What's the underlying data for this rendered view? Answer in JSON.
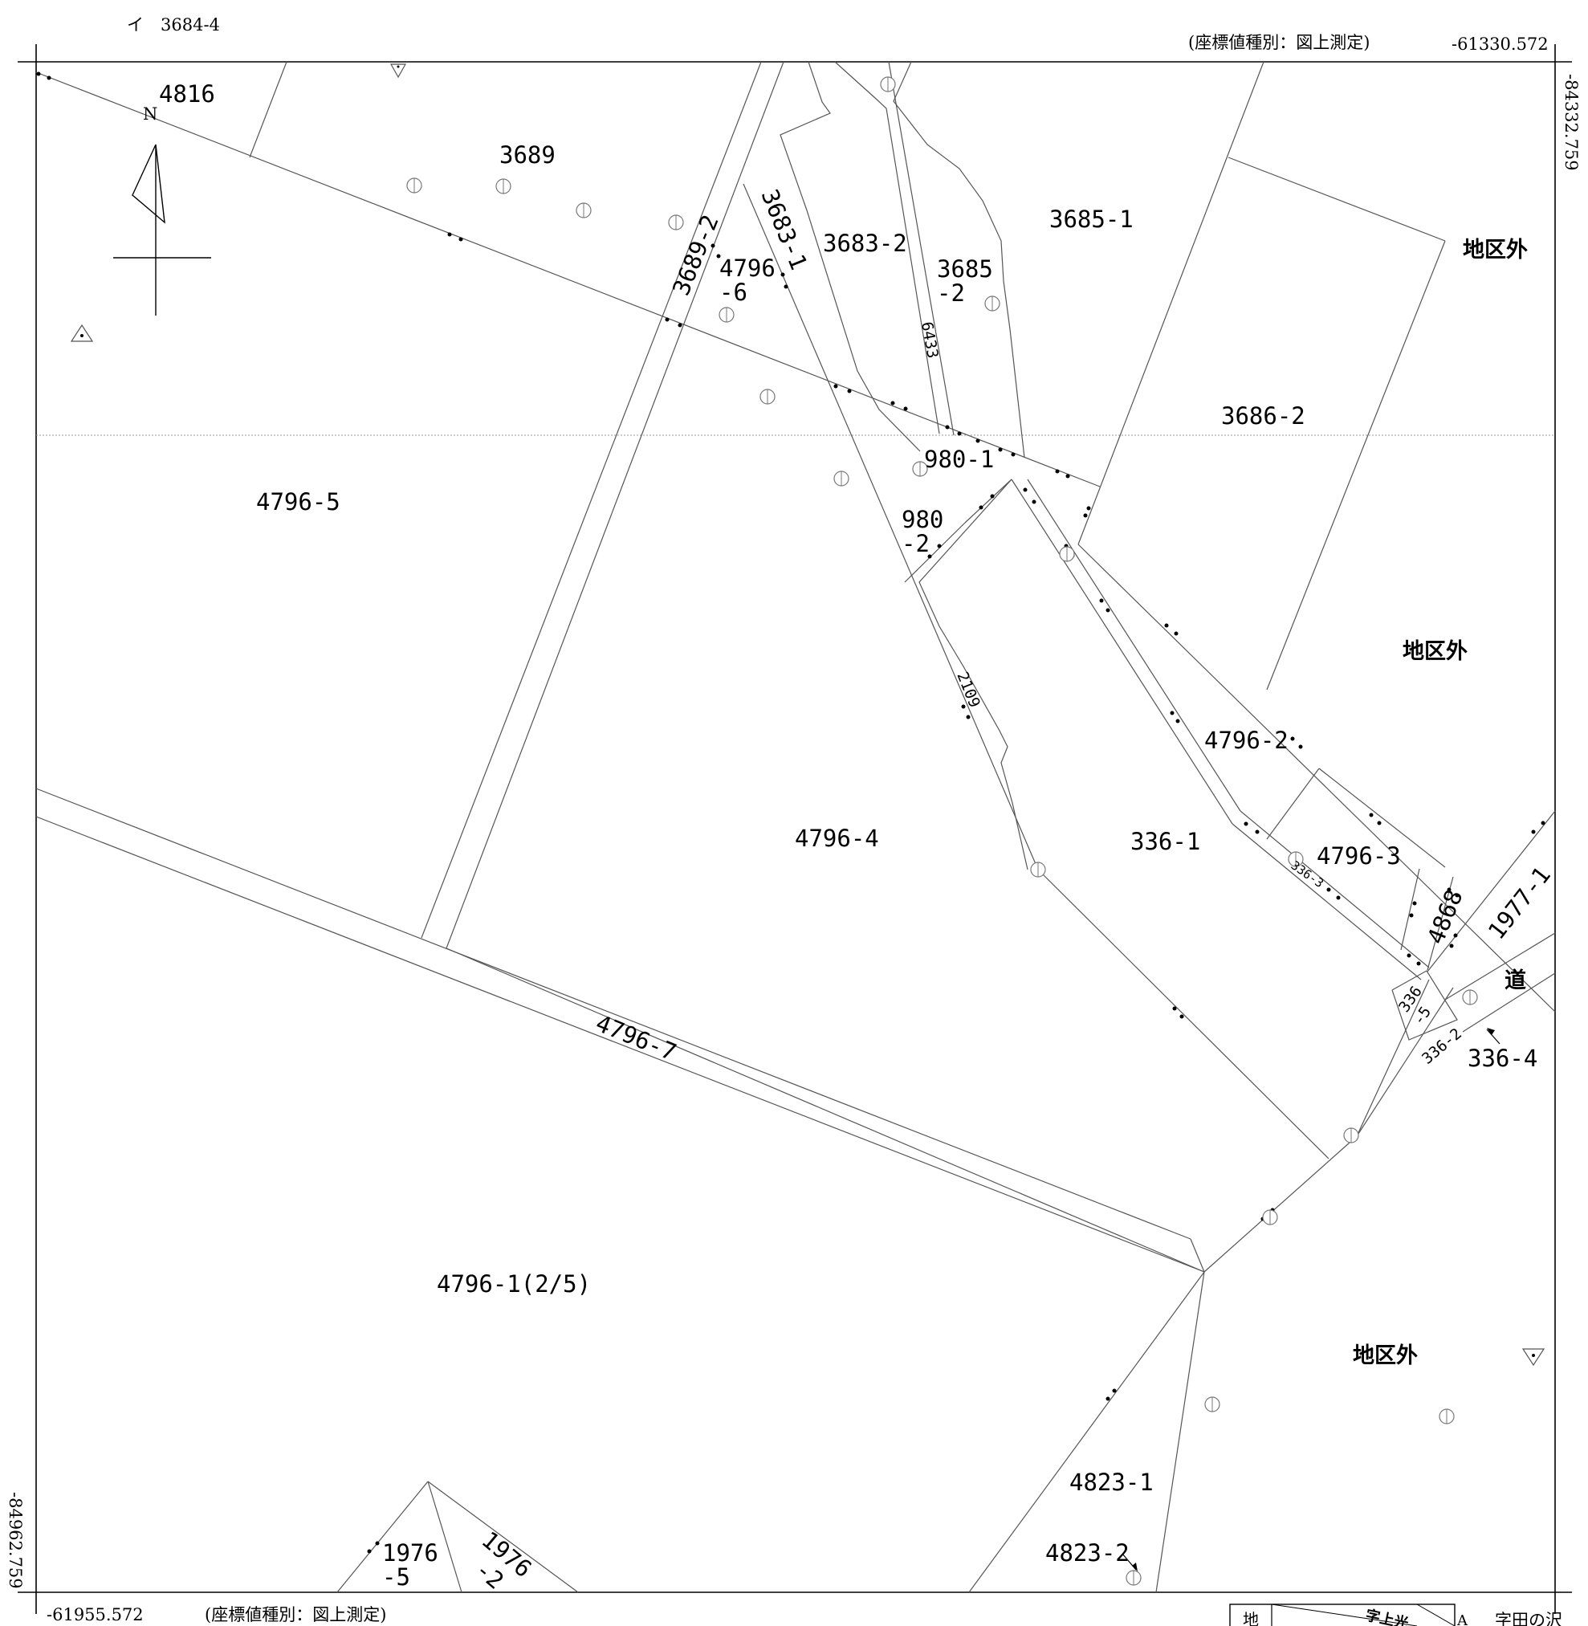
{
  "top_left_note": "イ　3684-4",
  "coord_type_top": "(座標値種別：図上測定)",
  "coord_x_top": "-61330.572",
  "coord_y_right": "-84332.759",
  "coord_y_left": "-84962.759",
  "coord_x_bottom": "-61955.572",
  "coord_type_bottom": "(座標値種別：図上測定)",
  "north": "N",
  "parcels": {
    "p4816": "4816",
    "p3689": "3689",
    "p3689_2": "3689-2",
    "p4796_6a": "4796",
    "p4796_6b": "-6",
    "p3683_1": "3683-1",
    "p3683_2": "3683-2",
    "p3685_2a": "3685",
    "p3685_2b": "-2",
    "p3685_1": "3685-1",
    "p6433": "6433",
    "p3686_2": "3686-2",
    "p980_1": "980-1",
    "p980_2a": "980",
    "p980_2b": "-2",
    "p4796_5": "4796-5",
    "p2109": "2109",
    "p4796_2": "4796-2",
    "p4796_4": "4796-4",
    "p336_1": "336-1",
    "p4796_3": "4796-3",
    "p336_3": "336-3",
    "p4868": "4868",
    "p1977_1": "1977-1",
    "p336_5a": "336",
    "p336_5b": "-5",
    "p336_2": "336-2",
    "p336_4": "336-4",
    "p4796_7": "4796-7",
    "p4796_1": "4796-1(2/5)",
    "p4823_1": "4823-1",
    "p4823_2": "4823-2",
    "p1976_5a": "1976",
    "p1976_5b": "-5",
    "p1976_2a": "1976",
    "p1976_2b": "-2"
  },
  "outside_district": "地区外",
  "road": "道",
  "legend_char": "地",
  "legend_text": "字上光",
  "legend_a": "A",
  "bottom_right_note": "字田の沢"
}
